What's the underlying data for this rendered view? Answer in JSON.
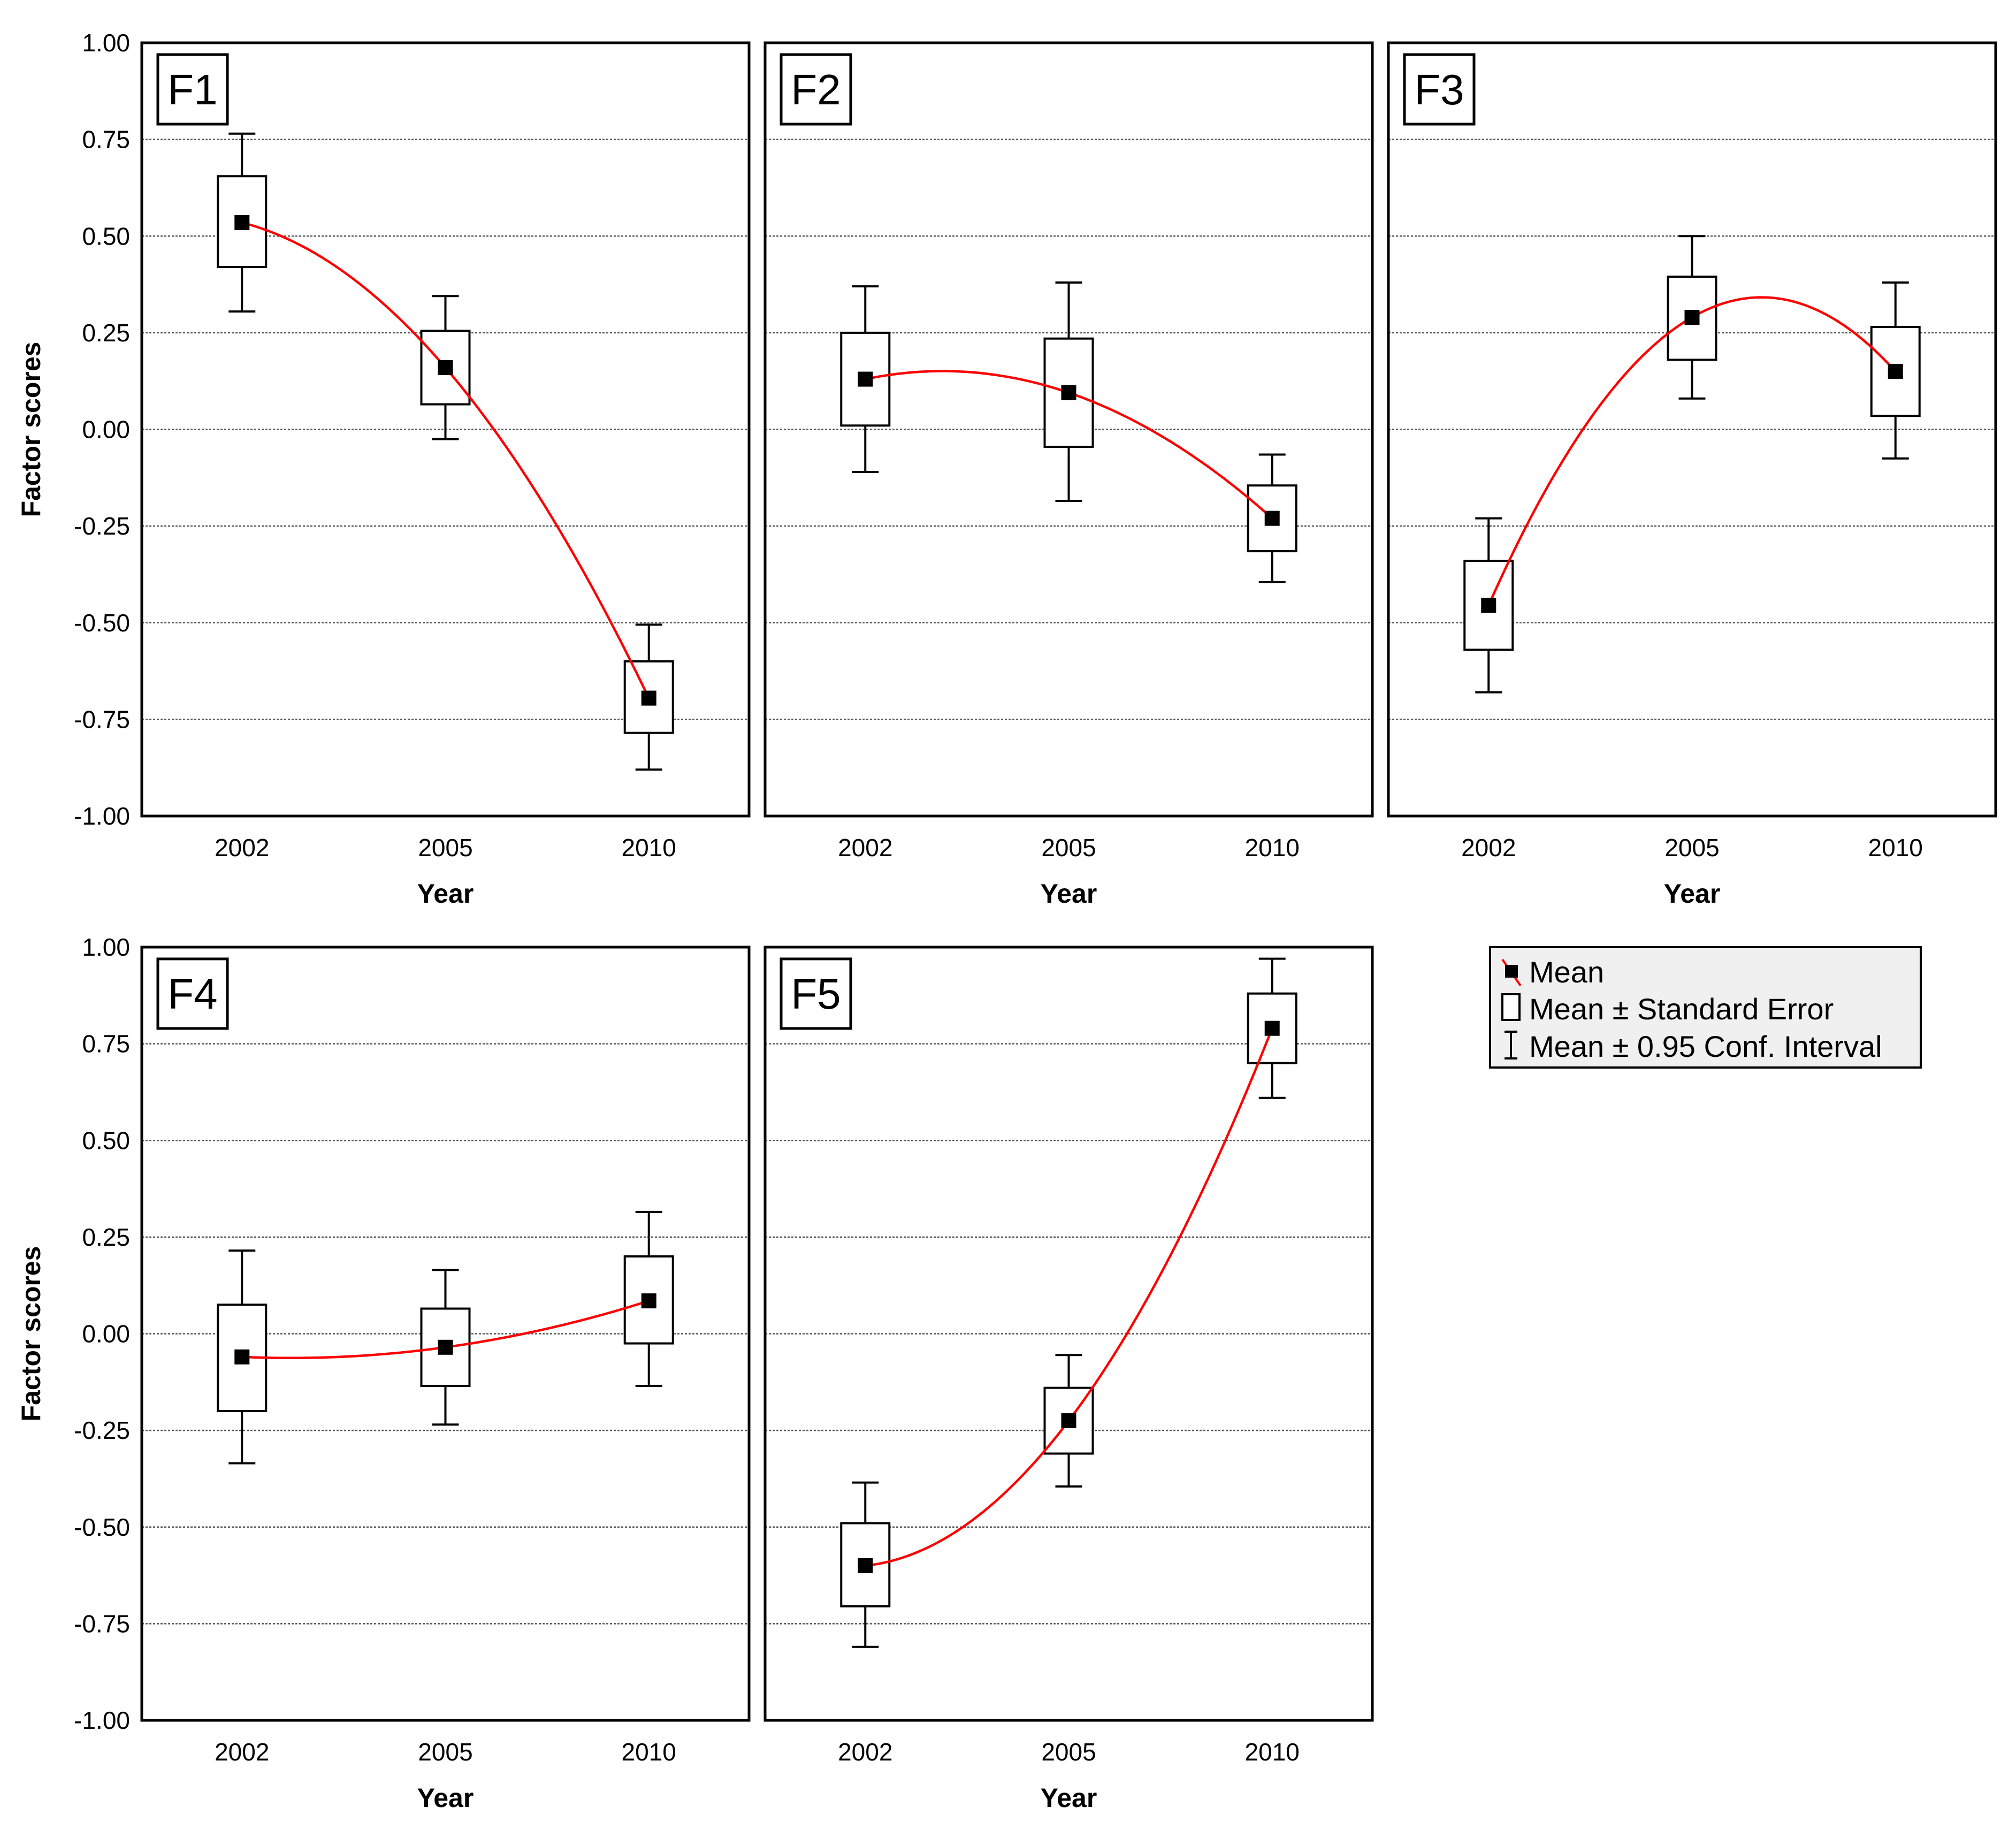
{
  "chart_data": [
    {
      "type": "box",
      "title": "F1",
      "categories": [
        "2002",
        "2005",
        "2010"
      ],
      "mean": [
        0.535,
        0.16,
        -0.695
      ],
      "se_low": [
        0.42,
        0.065,
        -0.785
      ],
      "se_high": [
        0.655,
        0.255,
        -0.6
      ],
      "ci_low": [
        0.305,
        -0.025,
        -0.88
      ],
      "ci_high": [
        0.765,
        0.345,
        -0.505
      ],
      "xlabel": "Year",
      "ylabel": "Factor scores",
      "ylim": [
        -1.0,
        1.0
      ],
      "yticks": [
        "1.00",
        "0.75",
        "0.50",
        "0.25",
        "0.00",
        "-0.25",
        "-0.50",
        "-0.75",
        "-1.00"
      ],
      "grid": true
    },
    {
      "type": "box",
      "title": "F2",
      "categories": [
        "2002",
        "2005",
        "2010"
      ],
      "mean": [
        0.13,
        0.095,
        -0.23
      ],
      "se_low": [
        0.01,
        -0.045,
        -0.315
      ],
      "se_high": [
        0.25,
        0.235,
        -0.145
      ],
      "ci_low": [
        -0.11,
        -0.185,
        -0.395
      ],
      "ci_high": [
        0.37,
        0.38,
        -0.065
      ],
      "xlabel": "Year",
      "ylabel": "Factor scores",
      "ylim": [
        -1.0,
        1.0
      ],
      "yticks": [
        "1.00",
        "0.75",
        "0.50",
        "0.25",
        "0.00",
        "-0.25",
        "-0.50",
        "-0.75",
        "-1.00"
      ],
      "grid": true
    },
    {
      "type": "box",
      "title": "F3",
      "categories": [
        "2002",
        "2005",
        "2010"
      ],
      "mean": [
        -0.455,
        0.29,
        0.15
      ],
      "se_low": [
        -0.57,
        0.18,
        0.035
      ],
      "se_high": [
        -0.34,
        0.395,
        0.265
      ],
      "ci_low": [
        -0.68,
        0.08,
        -0.075
      ],
      "ci_high": [
        -0.23,
        0.5,
        0.38
      ],
      "xlabel": "Year",
      "ylabel": "Factor scores",
      "ylim": [
        -1.0,
        1.0
      ],
      "yticks": [
        "1.00",
        "0.75",
        "0.50",
        "0.25",
        "0.00",
        "-0.25",
        "-0.50",
        "-0.75",
        "-1.00"
      ],
      "grid": true
    },
    {
      "type": "box",
      "title": "F4",
      "categories": [
        "2002",
        "2005",
        "2010"
      ],
      "mean": [
        -0.06,
        -0.035,
        0.085
      ],
      "se_low": [
        -0.2,
        -0.135,
        -0.025
      ],
      "se_high": [
        0.075,
        0.065,
        0.2
      ],
      "ci_low": [
        -0.335,
        -0.235,
        -0.135
      ],
      "ci_high": [
        0.215,
        0.165,
        0.315
      ],
      "xlabel": "Year",
      "ylabel": "Factor scores",
      "ylim": [
        -1.0,
        1.0
      ],
      "yticks": [
        "1.00",
        "0.75",
        "0.50",
        "0.25",
        "0.00",
        "-0.25",
        "-0.50",
        "-0.75",
        "-1.00"
      ],
      "grid": true
    },
    {
      "type": "box",
      "title": "F5",
      "categories": [
        "2002",
        "2005",
        "2010"
      ],
      "mean": [
        -0.6,
        -0.225,
        0.79
      ],
      "se_low": [
        -0.705,
        -0.31,
        0.7
      ],
      "se_high": [
        -0.49,
        -0.14,
        0.88
      ],
      "ci_low": [
        -0.81,
        -0.395,
        0.61
      ],
      "ci_high": [
        -0.385,
        -0.055,
        0.97
      ],
      "xlabel": "Year",
      "ylabel": "Factor scores",
      "ylim": [
        -1.0,
        1.0
      ],
      "yticks": [
        "1.00",
        "0.75",
        "0.50",
        "0.25",
        "0.00",
        "-0.25",
        "-0.50",
        "-0.75",
        "-1.00"
      ],
      "grid": true
    }
  ],
  "legend": {
    "placement": "right of bottom row",
    "items": [
      {
        "symbol": "mean-marker",
        "label": "Mean"
      },
      {
        "symbol": "box",
        "label": "Mean ± Standard Error"
      },
      {
        "symbol": "whisker",
        "label": "Mean ± 0.95 Conf. Interval"
      }
    ]
  },
  "colors": {
    "fit_line": "#ff0000",
    "marker": "#000000",
    "grid": "#555555",
    "legend_bg": "#f0f0f0"
  }
}
